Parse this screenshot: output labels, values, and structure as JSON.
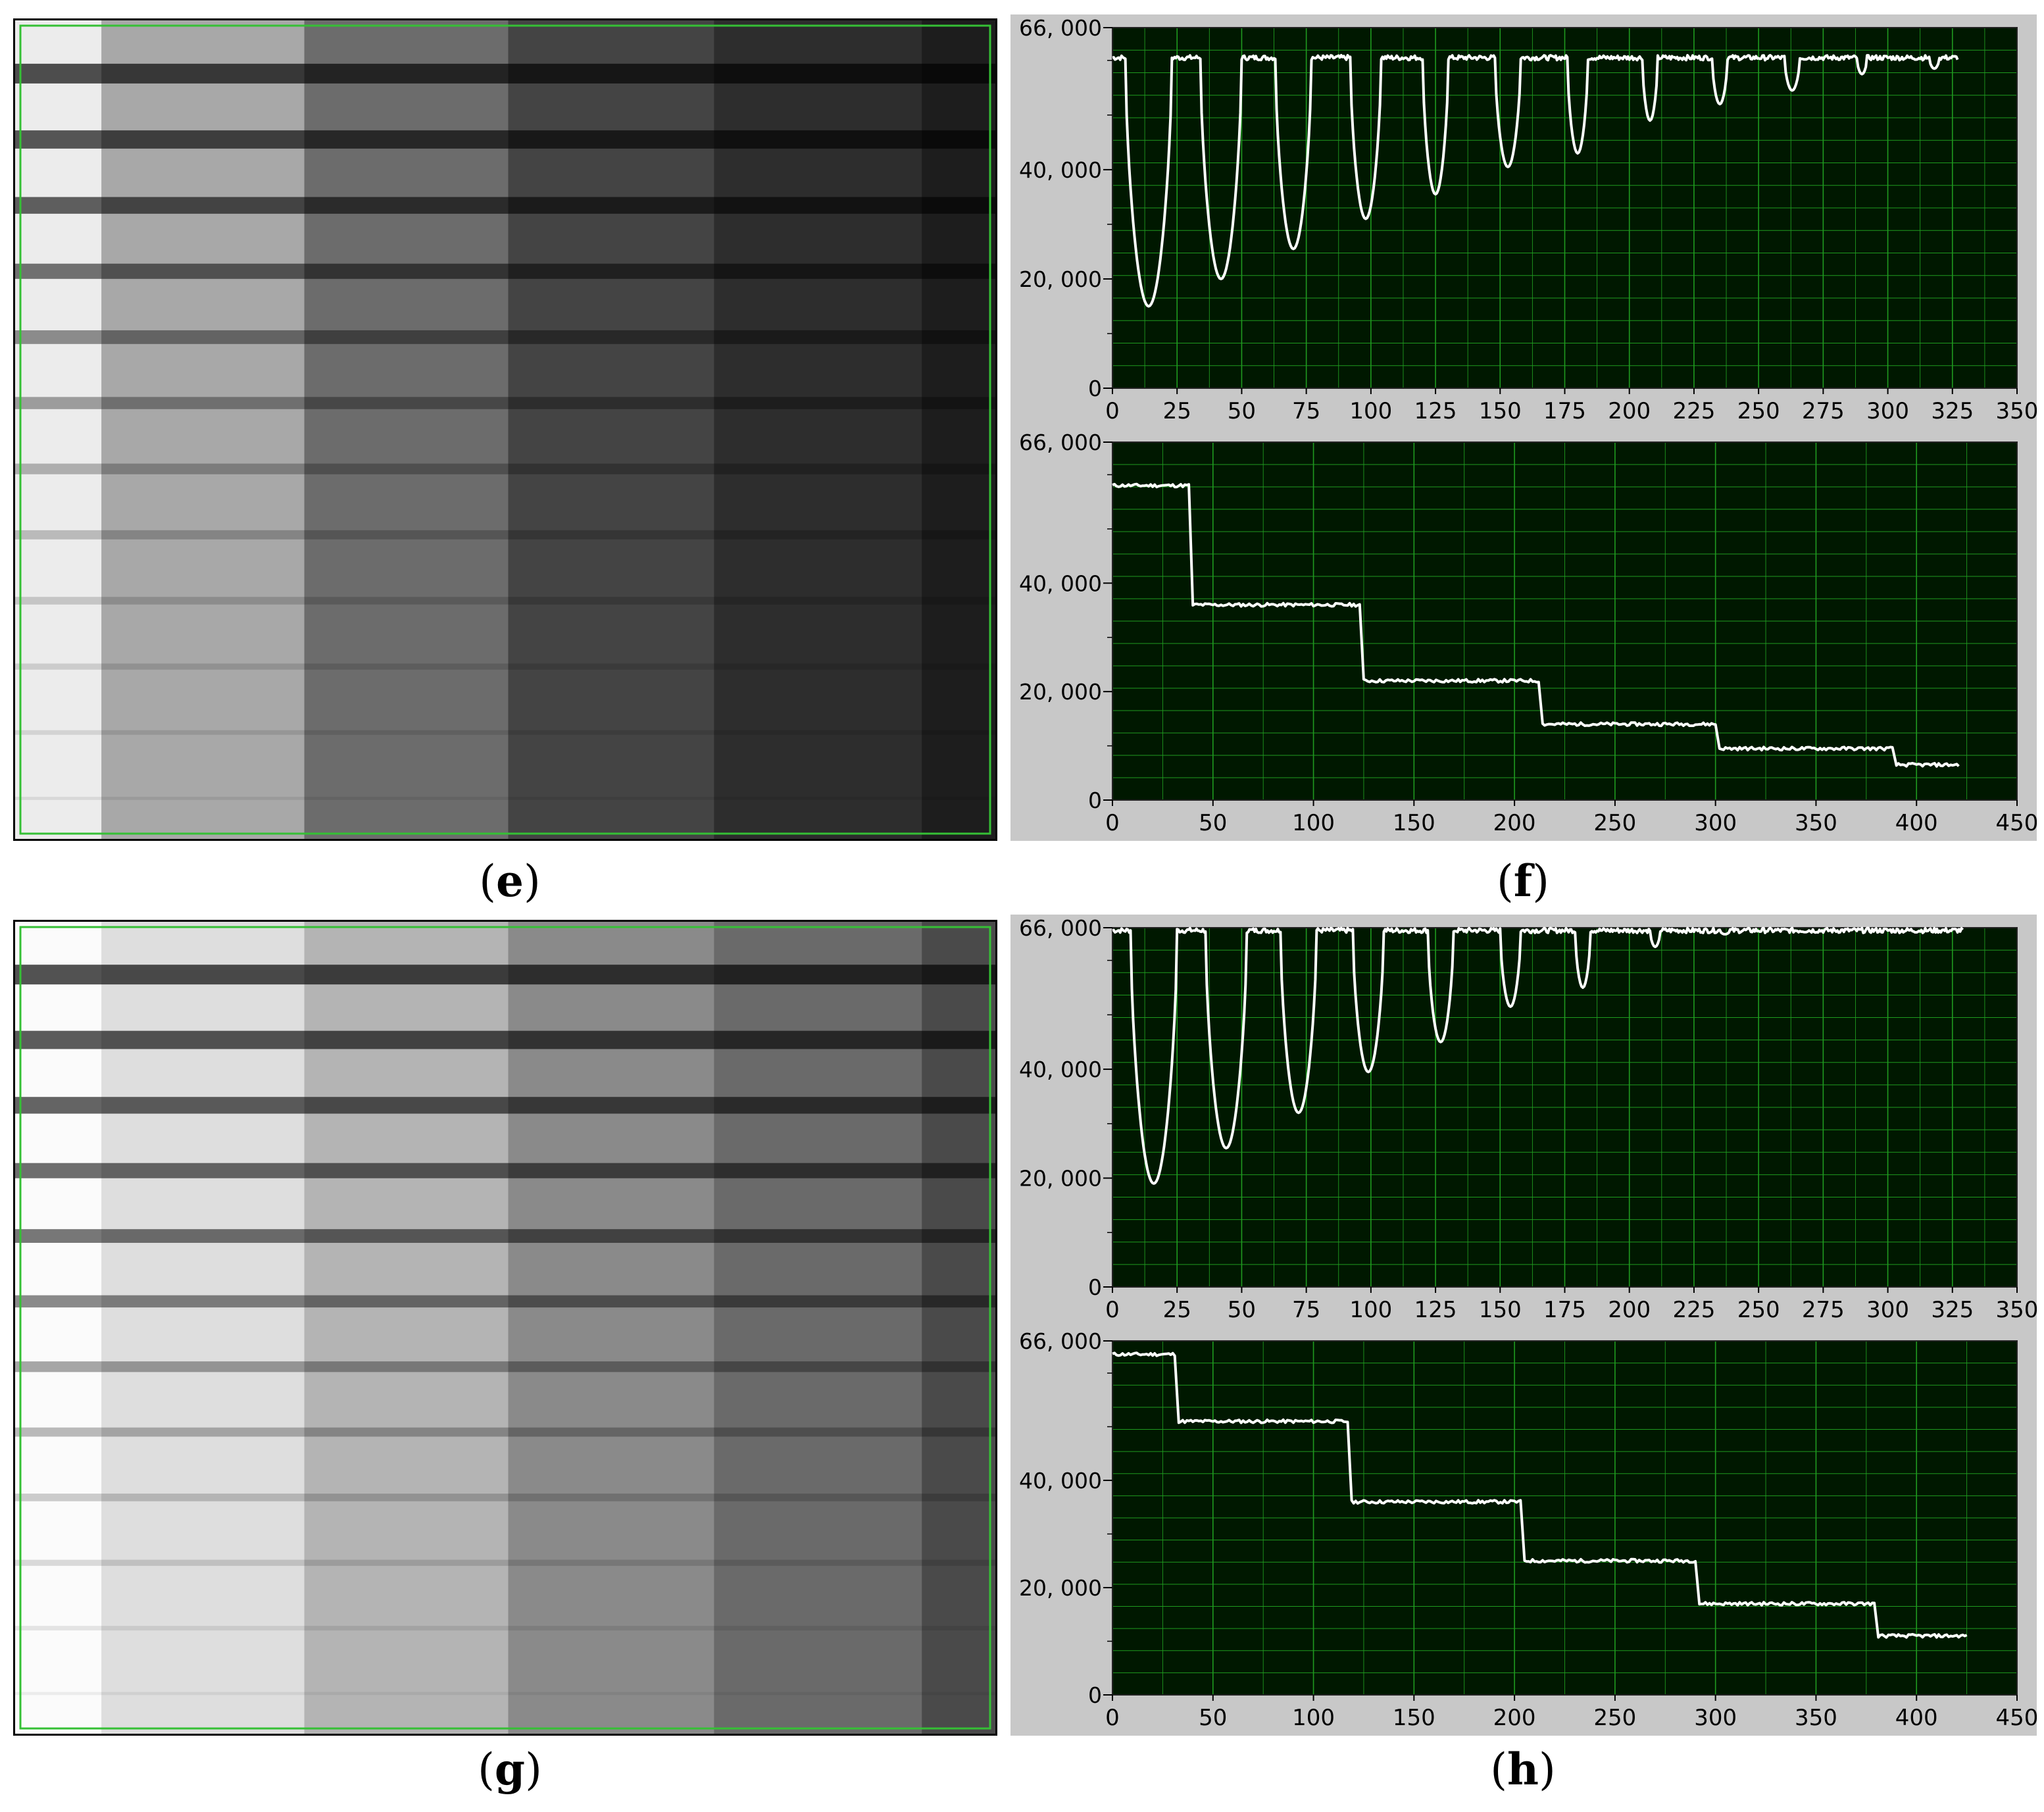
{
  "panels": {
    "e": "e",
    "f": "f",
    "g": "g",
    "h": "h"
  },
  "images": {
    "e": {
      "step_grays": [
        "#ececec",
        "#a8a8a8",
        "#6c6c6c",
        "#444444",
        "#2d2d2d",
        "#1d1d1d"
      ],
      "wire_darkness": [
        0.9,
        0.85,
        0.8,
        0.7,
        0.55,
        0.45,
        0.35,
        0.28,
        0.22,
        0.18,
        0.14,
        0.11
      ],
      "wire_start_step": 0,
      "roi_color": "#35c035"
    },
    "g": {
      "step_grays": [
        "#fbfbfb",
        "#dedede",
        "#b4b4b4",
        "#8a8a8a",
        "#6a6a6a",
        "#4a4a4a"
      ],
      "wire_darkness": [
        0.9,
        0.85,
        0.8,
        0.75,
        0.7,
        0.6,
        0.45,
        0.35,
        0.25,
        0.18,
        0.12,
        0.08
      ],
      "wire_start_step": 0,
      "roi_color": "#35c035"
    }
  },
  "colors": {
    "plot_bg": "#001800",
    "grid": "#1f9a1f",
    "trace": "#ffffff",
    "frame": "#c8c8c8"
  },
  "chart_data": [
    {
      "id": "f-top",
      "type": "line",
      "xlim": [
        0,
        350
      ],
      "ylim": [
        0,
        66000
      ],
      "xticks": [
        "0",
        "25",
        "50",
        "75",
        "100",
        "125",
        "150",
        "175",
        "200",
        "225",
        "250",
        "275",
        "300",
        "325",
        "350"
      ],
      "yticks": [
        {
          "value": 0,
          "label": "0"
        },
        {
          "value": 20000,
          "label": "20, 000"
        },
        {
          "value": 40000,
          "label": "40, 000"
        },
        {
          "value": 66000,
          "label": "66, 000"
        }
      ],
      "baseline": 60500,
      "x_start": 0,
      "x_end": 327,
      "dips": [
        {
          "center": 14,
          "min": 15000,
          "width": 9
        },
        {
          "center": 42,
          "min": 20000,
          "width": 8
        },
        {
          "center": 70,
          "min": 25500,
          "width": 7
        },
        {
          "center": 98,
          "min": 31000,
          "width": 6
        },
        {
          "center": 125,
          "min": 35500,
          "width": 5
        },
        {
          "center": 153,
          "min": 40500,
          "width": 5
        },
        {
          "center": 180,
          "min": 43000,
          "width": 4
        },
        {
          "center": 208,
          "min": 49000,
          "width": 3
        },
        {
          "center": 235,
          "min": 52000,
          "width": 3
        },
        {
          "center": 263,
          "min": 54500,
          "width": 3
        },
        {
          "center": 290,
          "min": 57500,
          "width": 2
        },
        {
          "center": 318,
          "min": 58500,
          "width": 2
        }
      ]
    },
    {
      "id": "f-bottom",
      "type": "line",
      "xlim": [
        0,
        450
      ],
      "ylim": [
        0,
        66000
      ],
      "xticks": [
        "0",
        "50",
        "100",
        "150",
        "200",
        "250",
        "300",
        "350",
        "400",
        "450"
      ],
      "yticks": [
        {
          "value": 0,
          "label": "0"
        },
        {
          "value": 20000,
          "label": "20, 000"
        },
        {
          "value": 40000,
          "label": "40, 000"
        },
        {
          "value": 66000,
          "label": "66, 000"
        }
      ],
      "steps": [
        {
          "x0": 0,
          "x1": 38,
          "y": 58000
        },
        {
          "x0": 40,
          "x1": 123,
          "y": 36000
        },
        {
          "x0": 125,
          "x1": 212,
          "y": 22000
        },
        {
          "x0": 214,
          "x1": 300,
          "y": 14000
        },
        {
          "x0": 302,
          "x1": 388,
          "y": 9500
        },
        {
          "x0": 390,
          "x1": 421,
          "y": 6500
        }
      ]
    },
    {
      "id": "h-top",
      "type": "line",
      "xlim": [
        0,
        350
      ],
      "ylim": [
        0,
        66000
      ],
      "xticks": [
        "0",
        "25",
        "50",
        "75",
        "100",
        "125",
        "150",
        "175",
        "200",
        "225",
        "250",
        "275",
        "300",
        "325",
        "350"
      ],
      "yticks": [
        {
          "value": 0,
          "label": "0"
        },
        {
          "value": 20000,
          "label": "20, 000"
        },
        {
          "value": 40000,
          "label": "40, 000"
        },
        {
          "value": 66000,
          "label": "66, 000"
        }
      ],
      "baseline": 65500,
      "x_start": 0,
      "x_end": 329,
      "dips": [
        {
          "center": 16,
          "min": 19000,
          "width": 9
        },
        {
          "center": 44,
          "min": 25500,
          "width": 8
        },
        {
          "center": 72,
          "min": 32000,
          "width": 7
        },
        {
          "center": 99,
          "min": 39500,
          "width": 6
        },
        {
          "center": 127,
          "min": 45000,
          "width": 5
        },
        {
          "center": 154,
          "min": 51500,
          "width": 4
        },
        {
          "center": 182,
          "min": 55000,
          "width": 3
        },
        {
          "center": 210,
          "min": 62500,
          "width": 2
        },
        {
          "center": 237,
          "min": 64800,
          "width": 2
        }
      ]
    },
    {
      "id": "h-bottom",
      "type": "line",
      "xlim": [
        0,
        450
      ],
      "ylim": [
        0,
        66000
      ],
      "xticks": [
        "0",
        "50",
        "100",
        "150",
        "200",
        "250",
        "300",
        "350",
        "400",
        "450"
      ],
      "yticks": [
        {
          "value": 0,
          "label": "0"
        },
        {
          "value": 20000,
          "label": "20, 000"
        },
        {
          "value": 40000,
          "label": "40, 000"
        },
        {
          "value": 66000,
          "label": "66, 000"
        }
      ],
      "steps": [
        {
          "x0": 0,
          "x1": 31,
          "y": 63500
        },
        {
          "x0": 33,
          "x1": 117,
          "y": 51000
        },
        {
          "x0": 119,
          "x1": 203,
          "y": 36000
        },
        {
          "x0": 205,
          "x1": 290,
          "y": 25000
        },
        {
          "x0": 292,
          "x1": 379,
          "y": 17000
        },
        {
          "x0": 381,
          "x1": 425,
          "y": 11000
        }
      ]
    }
  ]
}
